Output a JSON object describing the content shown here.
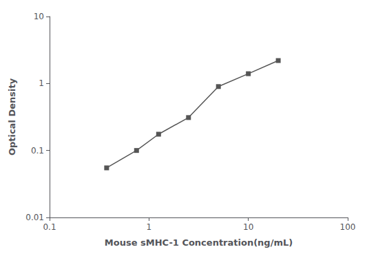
{
  "chart_data": {
    "type": "line",
    "x": [
      0.375,
      0.75,
      1.25,
      2.5,
      5.0,
      10.0,
      20.0
    ],
    "values": [
      0.055,
      0.1,
      0.175,
      0.31,
      0.9,
      1.4,
      2.2
    ],
    "xlabel": "Mouse sMHC-1 Concentration(ng/mL)",
    "ylabel": "Optical Density",
    "xlim": [
      0.1,
      100
    ],
    "ylim": [
      0.01,
      10
    ],
    "xticks": [
      0.1,
      1,
      10,
      100
    ],
    "yticks": [
      0.01,
      0.1,
      1,
      10
    ],
    "log": true,
    "grid": false,
    "color": "#555555",
    "marker": "square",
    "line_style": "solid"
  }
}
